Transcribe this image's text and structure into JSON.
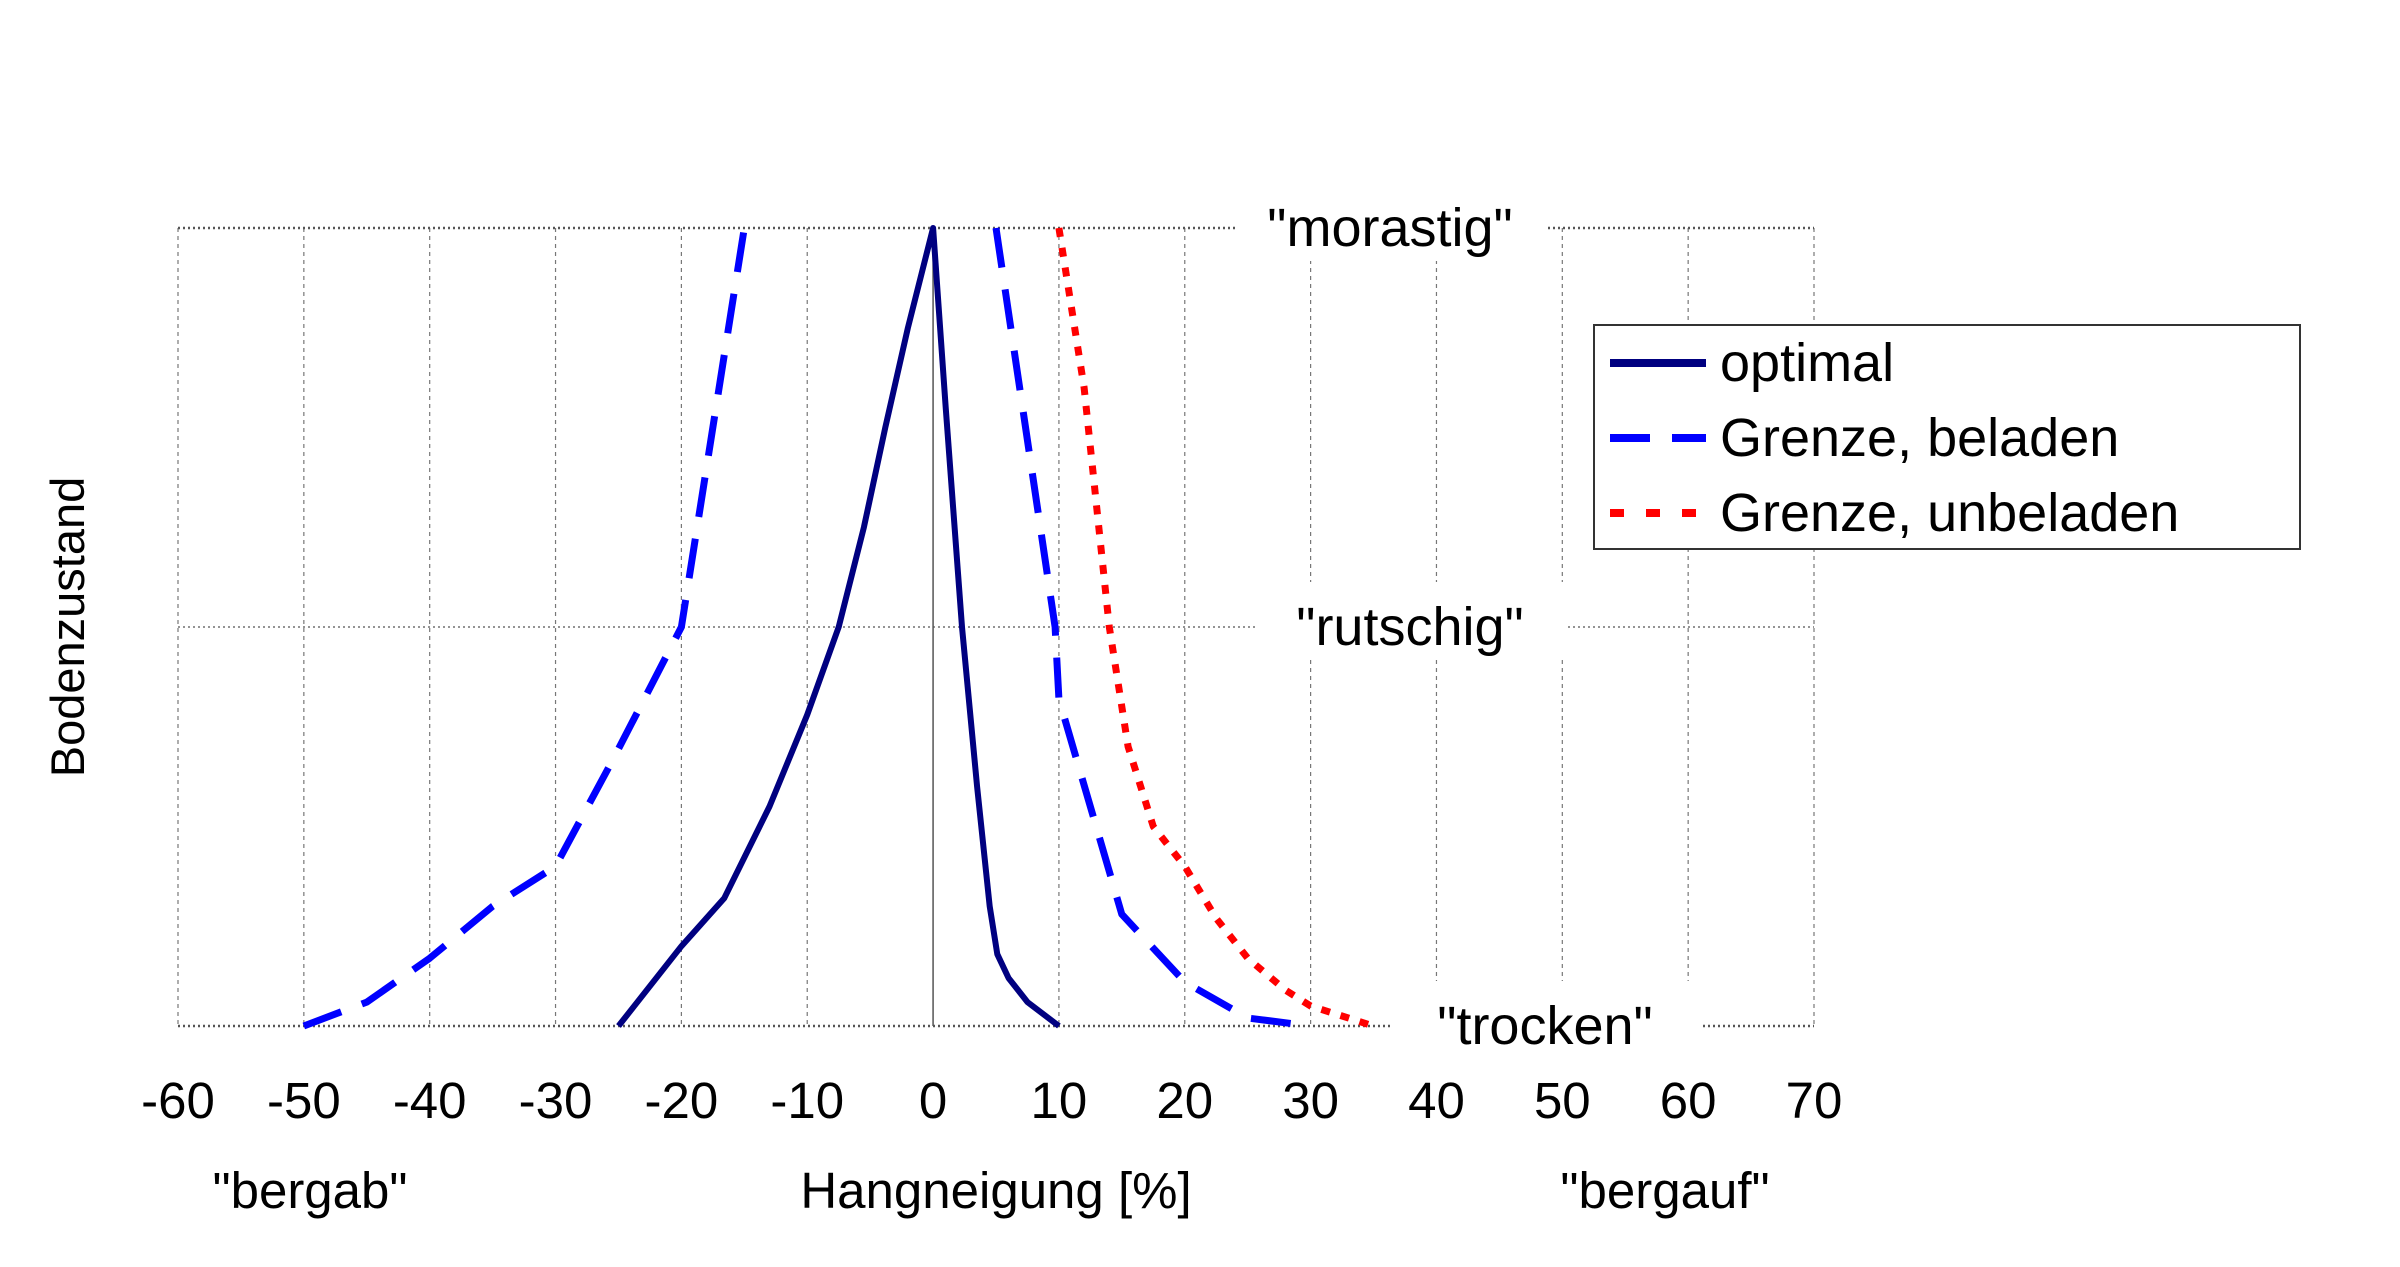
{
  "chart_data": {
    "type": "line",
    "title": "",
    "xlabel": "Hangneigung [%]",
    "xlabel_left": "\"bergab\"",
    "xlabel_right": "\"bergauf\"",
    "ylabel": "Bodenzustand",
    "xlim": [
      -60,
      70
    ],
    "xticks": [
      -60,
      -50,
      -40,
      -30,
      -20,
      -10,
      0,
      10,
      20,
      30,
      40,
      50,
      60,
      70
    ],
    "ylim": [
      0,
      2
    ],
    "ycategories": [
      {
        "value": 0,
        "label": "\"trocken\""
      },
      {
        "value": 1,
        "label": "\"rutschig\""
      },
      {
        "value": 2,
        "label": "\"morastig\""
      }
    ],
    "grid": true,
    "legend_position": "right",
    "series": [
      {
        "name": "optimal",
        "color": "#000080",
        "style": "solid",
        "points": [
          [
            -25,
            0
          ],
          [
            -20,
            0.2
          ],
          [
            -16.6,
            0.32
          ],
          [
            -13,
            0.55
          ],
          [
            -10,
            0.78
          ],
          [
            -7.5,
            1.0
          ],
          [
            -5.5,
            1.25
          ],
          [
            -3.8,
            1.5
          ],
          [
            -2,
            1.75
          ],
          [
            0,
            2
          ],
          [
            1,
            1.55
          ],
          [
            2.3,
            1.0
          ],
          [
            3.5,
            0.6
          ],
          [
            4.5,
            0.3
          ],
          [
            5.1,
            0.18
          ],
          [
            6,
            0.12
          ],
          [
            7.5,
            0.06
          ],
          [
            10,
            0
          ]
        ]
      },
      {
        "name": "Grenze, beladen",
        "color": "#0000FF",
        "style": "dashed",
        "points": [
          [
            -50,
            0
          ],
          [
            -45,
            0.06
          ],
          [
            -40,
            0.17
          ],
          [
            -35,
            0.3
          ],
          [
            -30,
            0.4
          ],
          [
            -25.4,
            0.67
          ],
          [
            -20,
            1
          ],
          [
            -15,
            2
          ],
          null,
          [
            5,
            2
          ],
          [
            9.7,
            1
          ],
          [
            10,
            0.82
          ],
          [
            15,
            0.28
          ],
          [
            20,
            0.11
          ],
          [
            25,
            0.02
          ],
          [
            30,
            0
          ]
        ]
      },
      {
        "name": "Grenze, unbeladen",
        "color": "#FF0000",
        "style": "dotted",
        "points": [
          [
            10,
            2
          ],
          [
            12,
            1.6
          ],
          [
            13,
            1.3
          ],
          [
            14,
            1.0
          ],
          [
            15.5,
            0.7
          ],
          [
            17.5,
            0.5
          ],
          [
            20,
            0.4
          ],
          [
            22.5,
            0.27
          ],
          [
            25,
            0.17
          ],
          [
            28,
            0.09
          ],
          [
            30,
            0.05
          ],
          [
            35,
            0
          ]
        ]
      }
    ]
  }
}
